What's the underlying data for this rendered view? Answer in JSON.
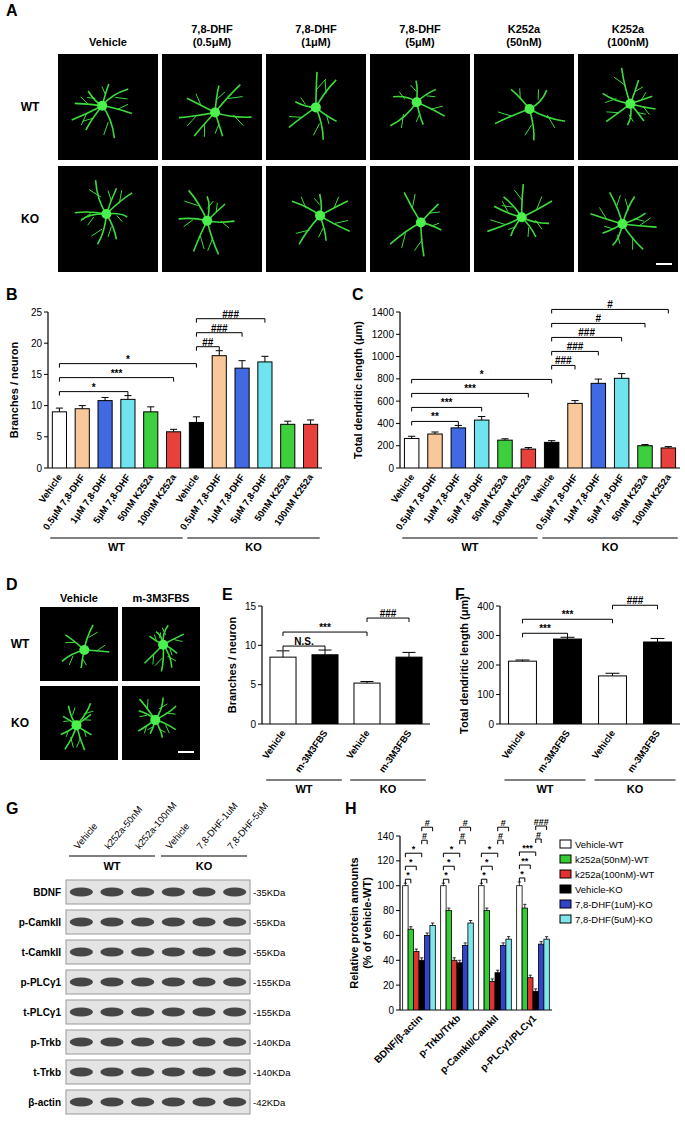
{
  "chart_data": [
    {
      "panel_label": "B",
      "type": "bar",
      "y_label": "Branches / neuron",
      "categories": [
        "Vehicle",
        "0.5μM 7,8-DHF",
        "1μM 7,8-DHF",
        "5μM 7,8-DHF",
        "50nM K252a",
        "100nM K252a",
        "Vehicle",
        "0.5μM 7,8-DHF",
        "1μM 7,8-DHF",
        "5μM 7,8-DHF",
        "50nM K252a",
        "100nM K252a"
      ],
      "values": [
        9,
        9.5,
        10.8,
        11,
        9,
        5.8,
        7.3,
        18,
        16,
        17,
        7,
        7
      ],
      "errors": [
        0.6,
        0.5,
        0.5,
        0.6,
        0.8,
        0.4,
        0.9,
        0.8,
        1.2,
        0.9,
        0.5,
        0.7
      ],
      "colors": [
        "#ffffff",
        "#f8c89a",
        "#4169e1",
        "#6fe3ee",
        "#3ecf3e",
        "#e8403a",
        "#000000",
        "#f8c89a",
        "#4169e1",
        "#6fe3ee",
        "#3ecf3e",
        "#e8403a"
      ],
      "ylim": [
        0,
        25
      ],
      "yticks": [
        0,
        5,
        10,
        15,
        20,
        25
      ],
      "groups": [
        {
          "label": "WT",
          "size": 6
        },
        {
          "label": "KO",
          "size": 6
        }
      ],
      "annotations": [
        {
          "from": 0,
          "to": 3,
          "text": "*"
        },
        {
          "from": 0,
          "to": 5,
          "text": "***"
        },
        {
          "from": 0,
          "to": 6,
          "text": "*"
        },
        {
          "from": 6,
          "to": 7,
          "text": "##"
        },
        {
          "from": 6,
          "to": 8,
          "text": "###"
        },
        {
          "from": 6,
          "to": 9,
          "text": "###"
        }
      ]
    },
    {
      "panel_label": "C",
      "type": "bar",
      "y_label": "Total dendritic length (μm)",
      "categories": [
        "Vehicle",
        "0.5μM 7,8-DHF",
        "1μM 7,8-DHF",
        "5μM 7,8-DHF",
        "50nM K252a",
        "100nM K252a",
        "Vehicle",
        "0.5μM 7,8-DHF",
        "1μM 7,8-DHF",
        "5μM 7,8-DHF",
        "50nM K252a",
        "100nM K252a"
      ],
      "values": [
        265,
        305,
        360,
        430,
        250,
        170,
        230,
        580,
        760,
        805,
        200,
        180
      ],
      "errors": [
        20,
        18,
        22,
        32,
        12,
        14,
        15,
        25,
        38,
        42,
        10,
        12
      ],
      "colors": [
        "#ffffff",
        "#f8c89a",
        "#4169e1",
        "#6fe3ee",
        "#3ecf3e",
        "#e8403a",
        "#000000",
        "#f8c89a",
        "#4169e1",
        "#6fe3ee",
        "#3ecf3e",
        "#e8403a"
      ],
      "ylim": [
        0,
        1400
      ],
      "yticks": [
        0,
        200,
        400,
        600,
        800,
        1000,
        1200,
        1400
      ],
      "groups": [
        {
          "label": "WT",
          "size": 6
        },
        {
          "label": "KO",
          "size": 6
        }
      ],
      "annotations": [
        {
          "from": 0,
          "to": 2,
          "text": "**"
        },
        {
          "from": 0,
          "to": 3,
          "text": "***"
        },
        {
          "from": 0,
          "to": 5,
          "text": "***"
        },
        {
          "from": 0,
          "to": 6,
          "text": "*"
        },
        {
          "from": 6,
          "to": 7,
          "text": "###"
        },
        {
          "from": 6,
          "to": 8,
          "text": "###"
        },
        {
          "from": 6,
          "to": 9,
          "text": "###"
        },
        {
          "from": 6,
          "to": 10,
          "text": "#"
        },
        {
          "from": 6,
          "to": 11,
          "text": "#"
        }
      ]
    },
    {
      "panel_label": "E",
      "type": "bar",
      "y_label": "Branches / neuron",
      "categories": [
        "Vehicle",
        "m-3M3FBS",
        "Vehicle",
        "m-3M3FBS"
      ],
      "values": [
        8.5,
        8.8,
        5.2,
        8.5
      ],
      "errors": [
        0.8,
        0.6,
        0.2,
        0.6
      ],
      "colors": [
        "#ffffff",
        "#000000",
        "#ffffff",
        "#000000"
      ],
      "ylim": [
        0,
        15
      ],
      "yticks": [
        0,
        5,
        10,
        15
      ],
      "groups": [
        {
          "label": "WT",
          "size": 2
        },
        {
          "label": "KO",
          "size": 2
        }
      ],
      "annotations": [
        {
          "from": 0,
          "to": 1,
          "text": "N.S."
        },
        {
          "from": 0,
          "to": 2,
          "text": "***"
        },
        {
          "from": 2,
          "to": 3,
          "text": "###"
        }
      ]
    },
    {
      "panel_label": "F",
      "type": "bar",
      "y_label": "Total dendritic length (μm)",
      "categories": [
        "Vehicle",
        "m-3M3FBS",
        "Vehicle",
        "m-3M3FBS"
      ],
      "values": [
        213,
        288,
        163,
        278
      ],
      "errors": [
        4,
        6,
        9,
        12
      ],
      "colors": [
        "#ffffff",
        "#000000",
        "#ffffff",
        "#000000"
      ],
      "ylim": [
        0,
        400
      ],
      "yticks": [
        0,
        100,
        200,
        300,
        400
      ],
      "groups": [
        {
          "label": "WT",
          "size": 2
        },
        {
          "label": "KO",
          "size": 2
        }
      ],
      "annotations": [
        {
          "from": 0,
          "to": 1,
          "text": "***"
        },
        {
          "from": 0,
          "to": 2,
          "text": "***"
        },
        {
          "from": 2,
          "to": 3,
          "text": "###"
        }
      ]
    },
    {
      "panel_label": "H",
      "type": "bar",
      "y_label": [
        "Relative protein amounts",
        "(% of vehicle-WT)"
      ],
      "categories": [
        "BDNF/β-actin",
        "p-Trkb/Trkb",
        "p-CamkII/CamkII",
        "p-PLCγ1/PLCγ1"
      ],
      "series": [
        {
          "name": "Vehicle-WT",
          "color": "#ffffff",
          "values": [
            100,
            100,
            100,
            100
          ],
          "errors": [
            2,
            2,
            2,
            3
          ]
        },
        {
          "name": "k252a(50nM)-WT",
          "color": "#33cc33",
          "values": [
            65,
            80,
            80,
            82
          ],
          "errors": [
            2,
            2,
            2,
            3
          ]
        },
        {
          "name": "k252a(100nM)-WT",
          "color": "#e03030",
          "values": [
            47,
            40,
            23,
            26
          ],
          "errors": [
            2,
            2,
            2,
            2
          ]
        },
        {
          "name": "Vehicle-KO",
          "color": "#000000",
          "values": [
            40,
            38,
            30,
            15
          ],
          "errors": [
            2,
            2,
            2,
            2
          ]
        },
        {
          "name": "7,8-DHF(1uM)-KO",
          "color": "#3344cc",
          "values": [
            60,
            52,
            52,
            53
          ],
          "errors": [
            2,
            2,
            2,
            2
          ]
        },
        {
          "name": "7,8-DHF(5uM)-KO",
          "color": "#7fe6ee",
          "values": [
            68,
            70,
            57,
            57
          ],
          "errors": [
            2,
            2,
            2,
            2
          ]
        }
      ],
      "ylim": [
        0,
        140
      ],
      "yticks": [
        0,
        20,
        40,
        60,
        80,
        100,
        120,
        140
      ],
      "legend": "right",
      "annotations": [
        {
          "category": 0,
          "from": 0,
          "to": 1,
          "text": "*"
        },
        {
          "category": 0,
          "from": 0,
          "to": 2,
          "text": "*"
        },
        {
          "category": 0,
          "from": 0,
          "to": 3,
          "text": "*"
        },
        {
          "category": 0,
          "from": 3,
          "to": 4,
          "text": "#"
        },
        {
          "category": 0,
          "from": 3,
          "to": 5,
          "text": "#"
        },
        {
          "category": 1,
          "from": 0,
          "to": 1,
          "text": "*"
        },
        {
          "category": 1,
          "from": 0,
          "to": 2,
          "text": "*"
        },
        {
          "category": 1,
          "from": 0,
          "to": 3,
          "text": "*"
        },
        {
          "category": 1,
          "from": 3,
          "to": 4,
          "text": "#"
        },
        {
          "category": 1,
          "from": 3,
          "to": 5,
          "text": "#"
        },
        {
          "category": 2,
          "from": 0,
          "to": 1,
          "text": "*"
        },
        {
          "category": 2,
          "from": 0,
          "to": 2,
          "text": "*"
        },
        {
          "category": 2,
          "from": 0,
          "to": 3,
          "text": "*"
        },
        {
          "category": 2,
          "from": 3,
          "to": 4,
          "text": "#"
        },
        {
          "category": 2,
          "from": 3,
          "to": 5,
          "text": "#"
        },
        {
          "category": 3,
          "from": 0,
          "to": 1,
          "text": "*"
        },
        {
          "category": 3,
          "from": 0,
          "to": 2,
          "text": "**"
        },
        {
          "category": 3,
          "from": 0,
          "to": 3,
          "text": "***"
        },
        {
          "category": 3,
          "from": 3,
          "to": 4,
          "text": "#"
        },
        {
          "category": 3,
          "from": 3,
          "to": 5,
          "text": "###"
        }
      ]
    }
  ],
  "panel_a": {
    "label": "A",
    "columns": [
      [
        "Vehicle"
      ],
      [
        "7,8-DHF",
        "(0.5μM)"
      ],
      [
        "7,8-DHF",
        "(1μM)"
      ],
      [
        "7,8-DHF",
        "(5μM)"
      ],
      [
        "K252a",
        "(50nM)"
      ],
      [
        "K252a",
        "(100nM)"
      ]
    ],
    "rows": [
      "WT",
      "KO"
    ]
  },
  "panel_d": {
    "label": "D",
    "columns": [
      [
        "Vehicle"
      ],
      [
        "m-3M3FBS"
      ]
    ],
    "rows": [
      "WT",
      "KO"
    ]
  },
  "panel_g": {
    "label": "G",
    "lanes": [
      "Vehicle",
      "k252a-50nM",
      "k252a-100nM",
      "Vehicle",
      "7,8-DHF-1uM",
      "7,8-DHF-5uM"
    ],
    "groups": [
      {
        "label": "WT",
        "size": 3
      },
      {
        "label": "KO",
        "size": 3
      }
    ],
    "rows": [
      {
        "name": "BDNF",
        "size": "-35KDa"
      },
      {
        "name": "p-CamkII",
        "size": "-55KDa"
      },
      {
        "name": "t-CamkII",
        "size": "-55KDa"
      },
      {
        "name": "p-PLCγ1",
        "size": "-155KDa"
      },
      {
        "name": "t-PLCγ1",
        "size": "-155KDa"
      },
      {
        "name": "p-Trkb",
        "size": "-140KDa"
      },
      {
        "name": "t-Trkb",
        "size": "-140KDa"
      },
      {
        "name": "β-actin",
        "size": "-42KDa"
      }
    ]
  }
}
